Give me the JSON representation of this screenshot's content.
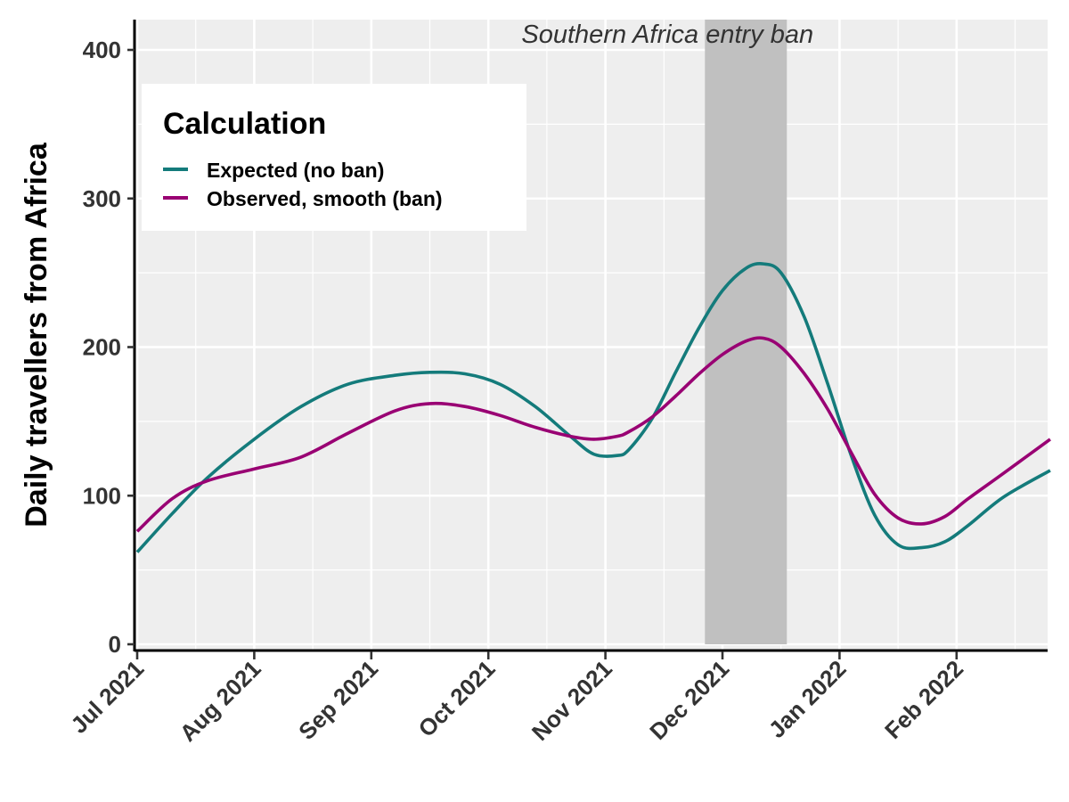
{
  "chart_data": {
    "type": "line",
    "title": "",
    "xlabel": "",
    "ylabel": "Daily travellers from Africa",
    "ylim": [
      0,
      400
    ],
    "yticks": [
      0,
      100,
      200,
      300,
      400
    ],
    "x_unit": "months since 1 Jul 2021",
    "xlim": [
      0,
      7.8
    ],
    "xticks": [
      {
        "x": 0,
        "label": "Jul 2021"
      },
      {
        "x": 1,
        "label": "Aug 2021"
      },
      {
        "x": 2,
        "label": "Sep 2021"
      },
      {
        "x": 3,
        "label": "Oct 2021"
      },
      {
        "x": 4,
        "label": "Nov 2021"
      },
      {
        "x": 5,
        "label": "Dec 2021"
      },
      {
        "x": 6,
        "label": "Jan 2022"
      },
      {
        "x": 7,
        "label": "Feb 2022"
      }
    ],
    "grid": true,
    "shaded_region": {
      "x_start": 4.85,
      "x_end": 5.55,
      "label": "Southern Africa entry ban",
      "color": "#c0c0c0"
    },
    "legend": {
      "title": "Calculation",
      "position": "top-left"
    },
    "series": [
      {
        "name": "Expected (no ban)",
        "color": "#147b7b",
        "x": [
          0,
          0.3,
          0.6,
          1.0,
          1.4,
          1.8,
          2.2,
          2.5,
          2.8,
          3.1,
          3.4,
          3.7,
          3.9,
          4.1,
          4.2,
          4.4,
          4.6,
          4.8,
          5.0,
          5.2,
          5.35,
          5.5,
          5.7,
          5.9,
          6.1,
          6.3,
          6.5,
          6.7,
          6.9,
          7.1,
          7.4,
          7.8
        ],
        "values": [
          62,
          88,
          112,
          138,
          160,
          175,
          181,
          183,
          182,
          175,
          160,
          140,
          128,
          127,
          131,
          152,
          183,
          213,
          238,
          253,
          256,
          250,
          220,
          175,
          127,
          87,
          67,
          65,
          69,
          80,
          99,
          117
        ]
      },
      {
        "name": "Observed, smooth (ban)",
        "color": "#990073",
        "x": [
          0,
          0.3,
          0.6,
          1.0,
          1.4,
          1.8,
          2.2,
          2.5,
          2.8,
          3.1,
          3.4,
          3.7,
          3.9,
          4.1,
          4.2,
          4.4,
          4.6,
          4.8,
          5.0,
          5.2,
          5.35,
          5.5,
          5.7,
          5.9,
          6.1,
          6.3,
          6.5,
          6.7,
          6.9,
          7.1,
          7.4,
          7.8
        ],
        "values": [
          76,
          98,
          110,
          118,
          126,
          142,
          157,
          162,
          160,
          154,
          146,
          140,
          138,
          140,
          143,
          153,
          167,
          182,
          195,
          204,
          206,
          200,
          182,
          158,
          129,
          101,
          85,
          81,
          86,
          98,
          115,
          138
        ]
      }
    ]
  }
}
